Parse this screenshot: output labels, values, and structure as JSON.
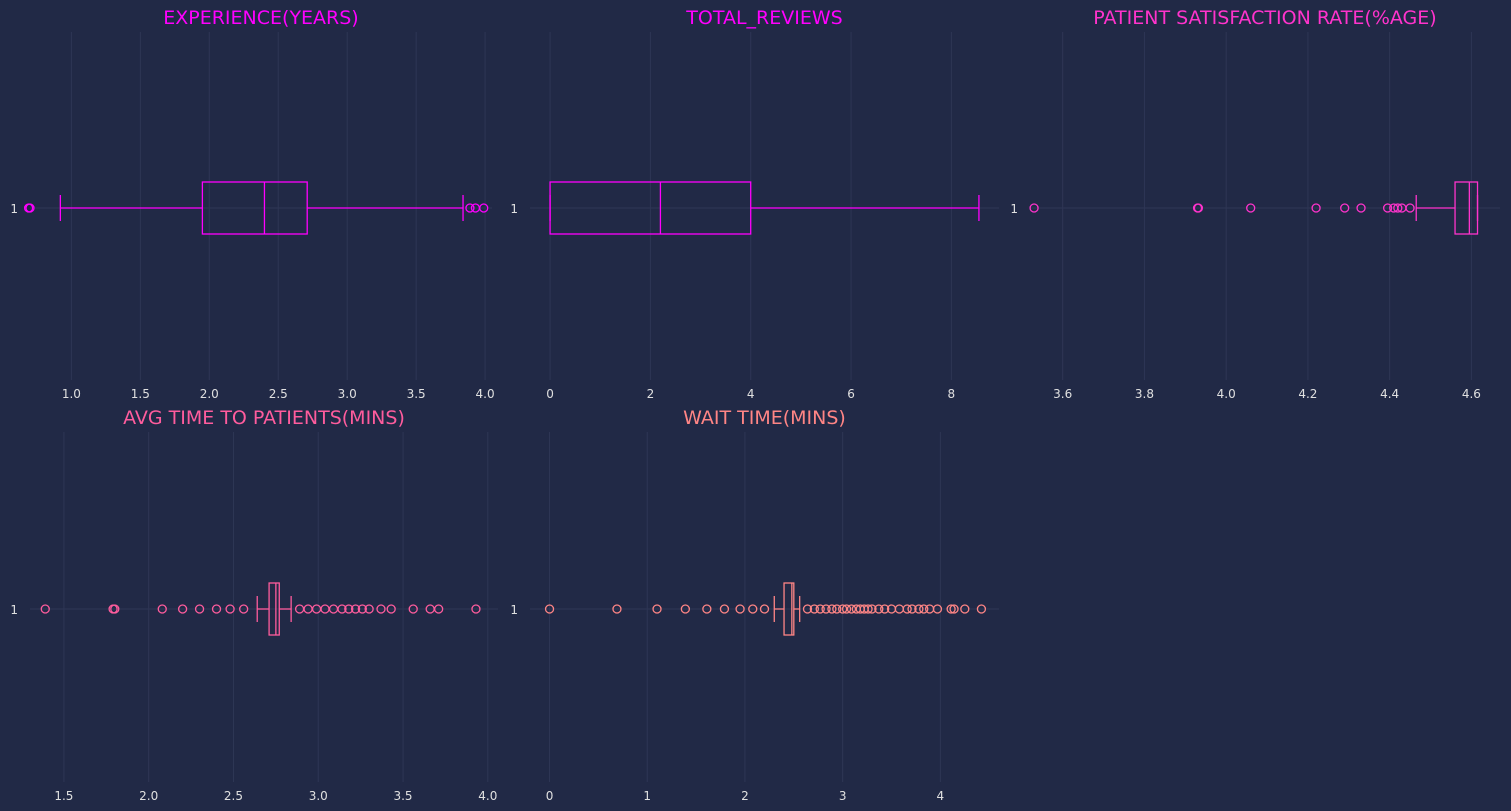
{
  "chart_data": [
    {
      "type": "boxplot",
      "orientation": "horizontal",
      "title": "EXPERIENCE(YEARS)",
      "color": "#ff00ff",
      "xlim": [
        0.7,
        4.05
      ],
      "xticks": [
        1.0,
        1.5,
        2.0,
        2.5,
        3.0,
        3.5,
        4.0
      ],
      "xtick_labels": [
        "1.0",
        "1.5",
        "2.0",
        "2.5",
        "3.0",
        "3.5",
        "4.0"
      ],
      "category_label": "1",
      "grid": true,
      "box": {
        "whislo": 0.92,
        "q1": 1.95,
        "med": 2.4,
        "q3": 2.71,
        "whishi": 3.84
      },
      "fliers": [
        0.69,
        0.7,
        3.89,
        3.93,
        3.99
      ]
    },
    {
      "type": "boxplot",
      "orientation": "horizontal",
      "title": "TOTAL_REVIEWS",
      "color": "#ff00ff",
      "xlim": [
        -0.4,
        8.95
      ],
      "xticks": [
        0,
        2,
        4,
        6,
        8
      ],
      "xtick_labels": [
        "0",
        "2",
        "4",
        "6",
        "8"
      ],
      "category_label": "1",
      "grid": true,
      "box": {
        "whislo": 0.0,
        "q1": 0.0,
        "med": 2.2,
        "q3": 4.0,
        "whishi": 8.55
      },
      "fliers": []
    },
    {
      "type": "boxplot",
      "orientation": "horizontal",
      "title": "PATIENT SATISFACTION RATE(%AGE)",
      "color": "#ff33cc",
      "xlim": [
        3.52,
        4.67
      ],
      "xticks": [
        3.6,
        3.8,
        4.0,
        4.2,
        4.4,
        4.6
      ],
      "xtick_labels": [
        "3.6",
        "3.8",
        "4.0",
        "4.2",
        "4.4",
        "4.6"
      ],
      "category_label": "1",
      "grid": true,
      "box": {
        "whislo": 4.465,
        "q1": 4.56,
        "med": 4.595,
        "q3": 4.615,
        "whishi": 4.615
      },
      "fliers": [
        3.53,
        3.93,
        3.932,
        4.06,
        4.22,
        4.29,
        4.33,
        4.395,
        4.41,
        4.42,
        4.43,
        4.45
      ]
    },
    {
      "type": "boxplot",
      "orientation": "horizontal",
      "title": "AVG TIME TO PATIENTS(MINS)",
      "color": "#ff5c9d",
      "xlim": [
        1.3,
        4.06
      ],
      "xticks": [
        1.5,
        2.0,
        2.5,
        3.0,
        3.5,
        4.0
      ],
      "xtick_labels": [
        "1.5",
        "2.0",
        "2.5",
        "3.0",
        "3.5",
        "4.0"
      ],
      "category_label": "1",
      "grid": true,
      "box": {
        "whislo": 2.64,
        "q1": 2.71,
        "med": 2.75,
        "q3": 2.77,
        "whishi": 2.84
      },
      "fliers": [
        1.39,
        1.79,
        1.8,
        2.08,
        2.2,
        2.3,
        2.4,
        2.48,
        2.56,
        2.89,
        2.94,
        2.99,
        3.04,
        3.09,
        3.14,
        3.18,
        3.22,
        3.26,
        3.3,
        3.37,
        3.43,
        3.56,
        3.66,
        3.71,
        3.93
      ]
    },
    {
      "type": "boxplot",
      "orientation": "horizontal",
      "title": "WAIT TIME(MINS)",
      "color": "#ff8585",
      "xlim": [
        -0.2,
        4.6
      ],
      "xticks": [
        0,
        1,
        2,
        3,
        4
      ],
      "xtick_labels": [
        "0",
        "1",
        "2",
        "3",
        "4"
      ],
      "category_label": "1",
      "grid": true,
      "box": {
        "whislo": 2.3,
        "q1": 2.4,
        "med": 2.48,
        "q3": 2.5,
        "whishi": 2.56
      },
      "fliers": [
        0.0,
        0.69,
        1.1,
        1.39,
        1.61,
        1.79,
        1.95,
        2.08,
        2.2,
        2.64,
        2.71,
        2.77,
        2.83,
        2.89,
        2.94,
        3.0,
        3.04,
        3.09,
        3.14,
        3.18,
        3.22,
        3.26,
        3.3,
        3.37,
        3.43,
        3.5,
        3.58,
        3.66,
        3.71,
        3.78,
        3.83,
        3.89,
        3.97,
        4.11,
        4.14,
        4.25,
        4.42
      ]
    }
  ]
}
